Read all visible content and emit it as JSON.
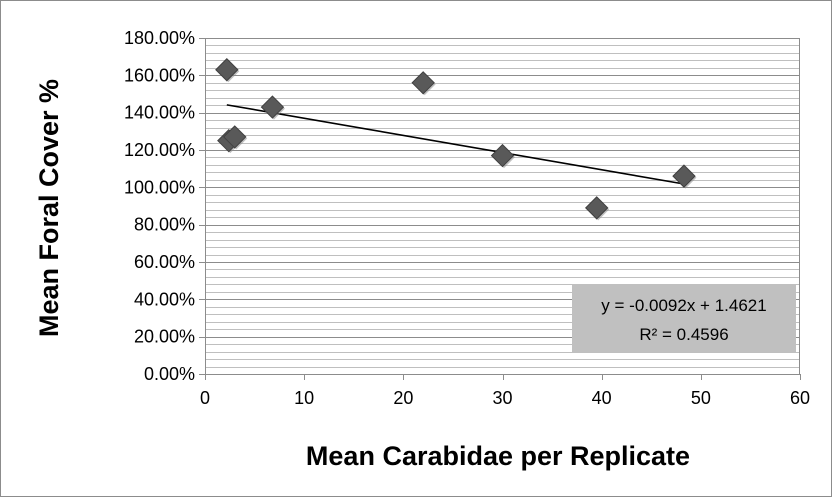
{
  "chart_data": {
    "type": "scatter",
    "title": "",
    "xlabel": "Mean Carabidae per Replicate",
    "ylabel": "Mean Foral Cover %",
    "xlim": [
      0,
      60
    ],
    "ylim": [
      0,
      1.8
    ],
    "x_ticks": [
      "0",
      "10",
      "20",
      "30",
      "40",
      "50",
      "60"
    ],
    "y_ticks": [
      "0.00%",
      "20.00%",
      "40.00%",
      "60.00%",
      "80.00%",
      "100.00%",
      "120.00%",
      "140.00%",
      "160.00%",
      "180.00%"
    ],
    "grid": "horizontal minor lines",
    "legend": "none",
    "marker": "diamond",
    "marker_color": "#595959",
    "series": [
      {
        "x": [
          2.2,
          2.4,
          3.0,
          6.8,
          22.0,
          30.0,
          39.5,
          48.3
        ],
        "y": [
          1.63,
          1.25,
          1.27,
          1.43,
          1.56,
          1.17,
          0.89,
          1.06
        ]
      }
    ],
    "trendline": {
      "type": "linear",
      "slope": -0.0092,
      "intercept": 1.4621,
      "x_start": 2.2,
      "x_end": 48.3,
      "equation": "y = -0.0092x + 1.4621",
      "r_squared": "R² = 0.4596",
      "color": "#000000"
    }
  }
}
